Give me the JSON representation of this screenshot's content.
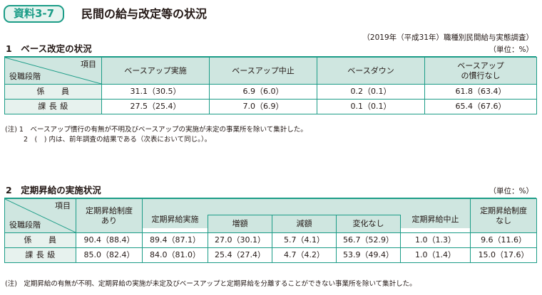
{
  "header": {
    "badge": "資料3-7",
    "title": "民間の給与改定等の状況",
    "source": "（2019年（平成31年）職種別民間給与実態調査）"
  },
  "section1": {
    "title": "1　ベース改定の状況",
    "unit": "（単位：%）",
    "corner_item": "項目",
    "corner_rank": "役職段階",
    "columns": [
      "ベースアップ実施",
      "ベースアップ中止",
      "ベースダウン",
      "ベースアップ\nの慣行なし"
    ],
    "rows": [
      {
        "label": "係　　員",
        "values": [
          "31.1（30.5）",
          "6.9（6.0）",
          "0.2（0.1）",
          "61.8（63.4）"
        ]
      },
      {
        "label": "課 長 級",
        "values": [
          "27.5（25.4）",
          "7.0（6.9）",
          "0.1（0.1）",
          "65.4（67.6）"
        ]
      }
    ],
    "notes": [
      "(注) 1　ベースアップ慣行の有無が不明及びベースアップの実施が未定の事業所を除いて集計した。",
      "2　(　) 内は、前年調査の結果である（次表において同じ。）。"
    ]
  },
  "section2": {
    "title": "2　定期昇給の実施状況",
    "unit": "（単位：%）",
    "corner_item": "項目",
    "corner_rank": "役職段階",
    "headers": {
      "system_yes": "定期昇給制度\nあり",
      "implemented": "定期昇給実施",
      "increase": "増額",
      "decrease": "減額",
      "no_change": "変化なし",
      "suspended": "定期昇給中止",
      "system_no": "定期昇給制度\nなし"
    },
    "rows": [
      {
        "label": "係　　員",
        "values": [
          "90.4（88.4）",
          "89.4（87.1）",
          "27.0（30.1）",
          "5.7（4.1）",
          "56.7（52.9）",
          "1.0（1.3）",
          "9.6（11.6）"
        ]
      },
      {
        "label": "課 長 級",
        "values": [
          "85.0（82.4）",
          "84.0（81.0）",
          "25.4（27.4）",
          "4.7（4.2）",
          "53.9（49.4）",
          "1.0（1.4）",
          "15.0（17.6）"
        ]
      }
    ],
    "note": "(注)　定期昇給の有無が不明、定期昇給の実施が未定及びベースアップと定期昇給を分離することができない事業所を除いて集計した。"
  }
}
